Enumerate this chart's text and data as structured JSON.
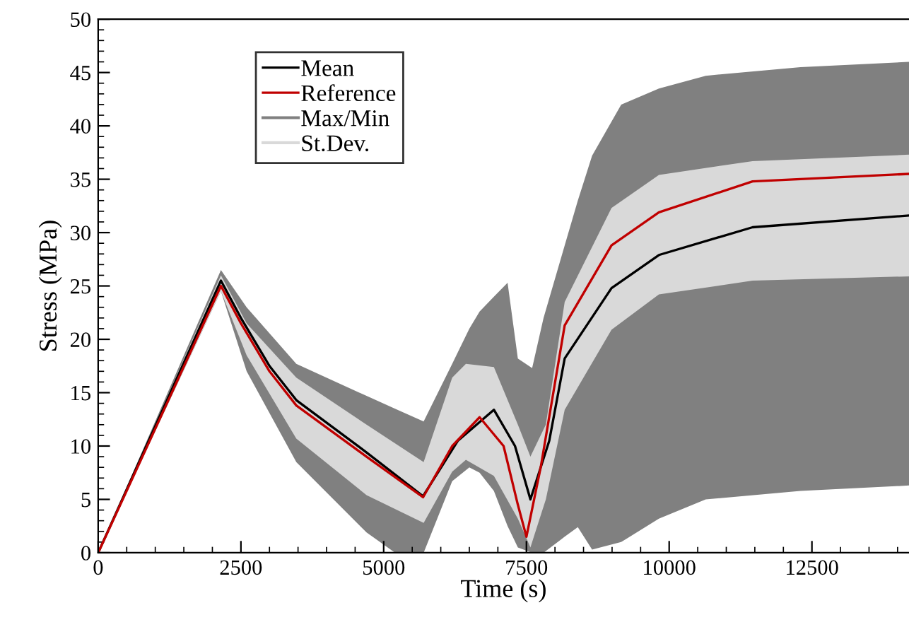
{
  "chart_data": {
    "type": "line",
    "xlabel": "Time (s)",
    "ylabel": "Stress (MPa)",
    "xlim": [
      0,
      14200
    ],
    "ylim": [
      0,
      50
    ],
    "xticks": [
      0,
      2500,
      5000,
      7500,
      10000,
      12500
    ],
    "yticks": [
      0,
      5,
      10,
      15,
      20,
      25,
      30,
      35,
      40,
      45,
      50
    ],
    "grid": false,
    "legend": "top left",
    "marker": "none",
    "line_style": "solid",
    "series": [
      {
        "name": "Max/Min",
        "color": "#808080",
        "x": [
          0,
          2150,
          2600,
          3470,
          4700,
          5200,
          5700,
          6200,
          6500,
          6680,
          6930,
          7170,
          7350,
          7600,
          7800,
          8170,
          8400,
          8650,
          9160,
          9820,
          10640,
          12300,
          14200
        ],
        "values": [
          null,
          null,
          null,
          null,
          null,
          null,
          null,
          null,
          null,
          null,
          null,
          null,
          null,
          null,
          null,
          null,
          null,
          null,
          null,
          null,
          null,
          null,
          null
        ],
        "lower": [
          0,
          24.5,
          17,
          8.5,
          1.9,
          0,
          0,
          6.7,
          8,
          7.5,
          5.8,
          2.5,
          0.5,
          0,
          0,
          1.5,
          2.4,
          0.3,
          1,
          3.2,
          5,
          5.8,
          6.3
        ],
        "upper": [
          0,
          26.5,
          23,
          17.7,
          14.7,
          13.5,
          12.3,
          17.7,
          21,
          22.6,
          24,
          25.3,
          18.2,
          17.3,
          22,
          28.8,
          33,
          37.2,
          42,
          43.5,
          44.7,
          45.5,
          46
        ]
      },
      {
        "name": "St.Dev.",
        "color": "#d9d9d9",
        "x": [
          0,
          2150,
          2600,
          3470,
          4700,
          5700,
          6200,
          6440,
          6930,
          7350,
          7570,
          7840,
          8170,
          8990,
          9820,
          11460,
          14200
        ],
        "values": [
          null,
          null,
          null,
          null,
          null,
          null,
          null,
          null,
          null,
          null,
          null,
          null,
          null,
          null,
          null,
          null,
          null
        ],
        "lower": [
          0,
          24.5,
          18.5,
          10.7,
          5.4,
          2.8,
          7.6,
          8.7,
          7.2,
          3.2,
          0.5,
          5,
          13.4,
          20.9,
          24.2,
          25.5,
          25.9
        ],
        "upper": [
          0,
          26,
          21.5,
          16.4,
          12,
          8.5,
          16.4,
          17.7,
          17.4,
          12,
          9,
          12,
          23.5,
          32.3,
          35.4,
          36.7,
          37.3
        ]
      },
      {
        "name": "Mean",
        "color": "#000000",
        "x": [
          0,
          2150,
          2500,
          3000,
          3470,
          4700,
          5690,
          6300,
          6930,
          7300,
          7570,
          7900,
          8170,
          8990,
          9820,
          11460,
          14200
        ],
        "values": [
          0,
          25.5,
          22,
          17.5,
          14.3,
          9.4,
          5.3,
          10.5,
          13.4,
          10,
          5,
          10.5,
          18.2,
          24.8,
          27.9,
          30.5,
          31.6
        ]
      },
      {
        "name": "Reference",
        "color": "#c00000",
        "x": [
          0,
          2150,
          2500,
          3000,
          3470,
          4700,
          5690,
          6200,
          6680,
          7100,
          7350,
          7500,
          7750,
          8170,
          8990,
          9820,
          11460,
          14200
        ],
        "values": [
          0,
          25,
          21.5,
          17,
          13.8,
          9,
          5.2,
          10,
          12.7,
          10,
          4.5,
          1.5,
          8,
          21.3,
          28.8,
          31.9,
          34.8,
          35.5
        ]
      }
    ]
  }
}
